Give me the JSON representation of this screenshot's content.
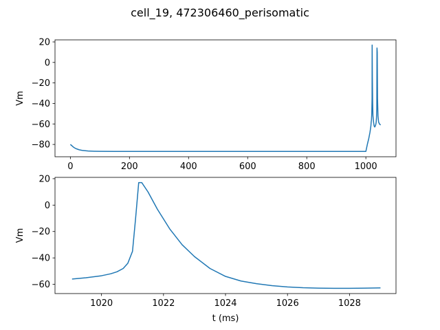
{
  "figure": {
    "title": "cell_19, 472306460_perisomatic",
    "line_color": "#1f77b4"
  },
  "chart_data": [
    {
      "type": "line",
      "title": "",
      "xlabel": "",
      "ylabel": "Vm",
      "xlim": [
        -52,
        1102
      ],
      "ylim": [
        -92,
        22
      ],
      "xticks": [
        0,
        200,
        400,
        600,
        800,
        1000
      ],
      "yticks": [
        -80,
        -60,
        -40,
        -20,
        0,
        20
      ],
      "grid": false,
      "series": [
        {
          "name": "",
          "x": [
            0,
            5,
            10,
            15,
            20,
            30,
            40,
            60,
            80,
            100,
            150,
            200,
            300,
            400,
            500,
            600,
            700,
            800,
            900,
            995,
            1000,
            1005,
            1010,
            1014,
            1017,
            1018,
            1019,
            1020,
            1021,
            1021.3,
            1022,
            1023,
            1024,
            1026,
            1028,
            1030,
            1032,
            1034,
            1035,
            1036,
            1037,
            1037.7,
            1038.5,
            1039.5,
            1041,
            1043,
            1046,
            1050
          ],
          "y": [
            -80,
            -81.2,
            -82.5,
            -83.5,
            -84.2,
            -85.2,
            -85.8,
            -86.4,
            -86.6,
            -86.7,
            -86.8,
            -86.8,
            -86.8,
            -86.8,
            -86.8,
            -86.8,
            -86.8,
            -86.8,
            -86.8,
            -86.8,
            -86.8,
            -80,
            -74,
            -68,
            -62,
            -58,
            -56,
            -50,
            -35,
            17,
            -15,
            -40,
            -52,
            -58,
            -62,
            -63,
            -62,
            -60,
            -58,
            -54,
            -45,
            14,
            10,
            -35,
            -52,
            -58,
            -60,
            -61
          ]
        }
      ]
    },
    {
      "type": "line",
      "title": "",
      "xlabel": "t (ms)",
      "ylabel": "Vm",
      "xlim": [
        1018.5,
        1029.5
      ],
      "ylim": [
        -67,
        21
      ],
      "xticks": [
        1020,
        1022,
        1024,
        1026,
        1028
      ],
      "yticks": [
        -60,
        -40,
        -20,
        0,
        20
      ],
      "grid": false,
      "series": [
        {
          "name": "",
          "x": [
            1019.05,
            1019.5,
            1020,
            1020.3,
            1020.5,
            1020.7,
            1020.85,
            1021,
            1021.1,
            1021.2,
            1021.3,
            1021.5,
            1021.8,
            1022.2,
            1022.6,
            1023,
            1023.5,
            1024,
            1024.5,
            1025,
            1025.5,
            1026,
            1026.5,
            1027,
            1027.5,
            1028,
            1028.5,
            1029
          ],
          "y": [
            -56,
            -55,
            -53.5,
            -52,
            -50.5,
            -48,
            -44,
            -35,
            -10,
            17,
            17,
            10,
            -3,
            -18,
            -30,
            -39,
            -48,
            -54,
            -57.5,
            -59.5,
            -61,
            -62,
            -62.6,
            -62.9,
            -63,
            -63,
            -62.9,
            -62.7
          ]
        }
      ]
    }
  ]
}
